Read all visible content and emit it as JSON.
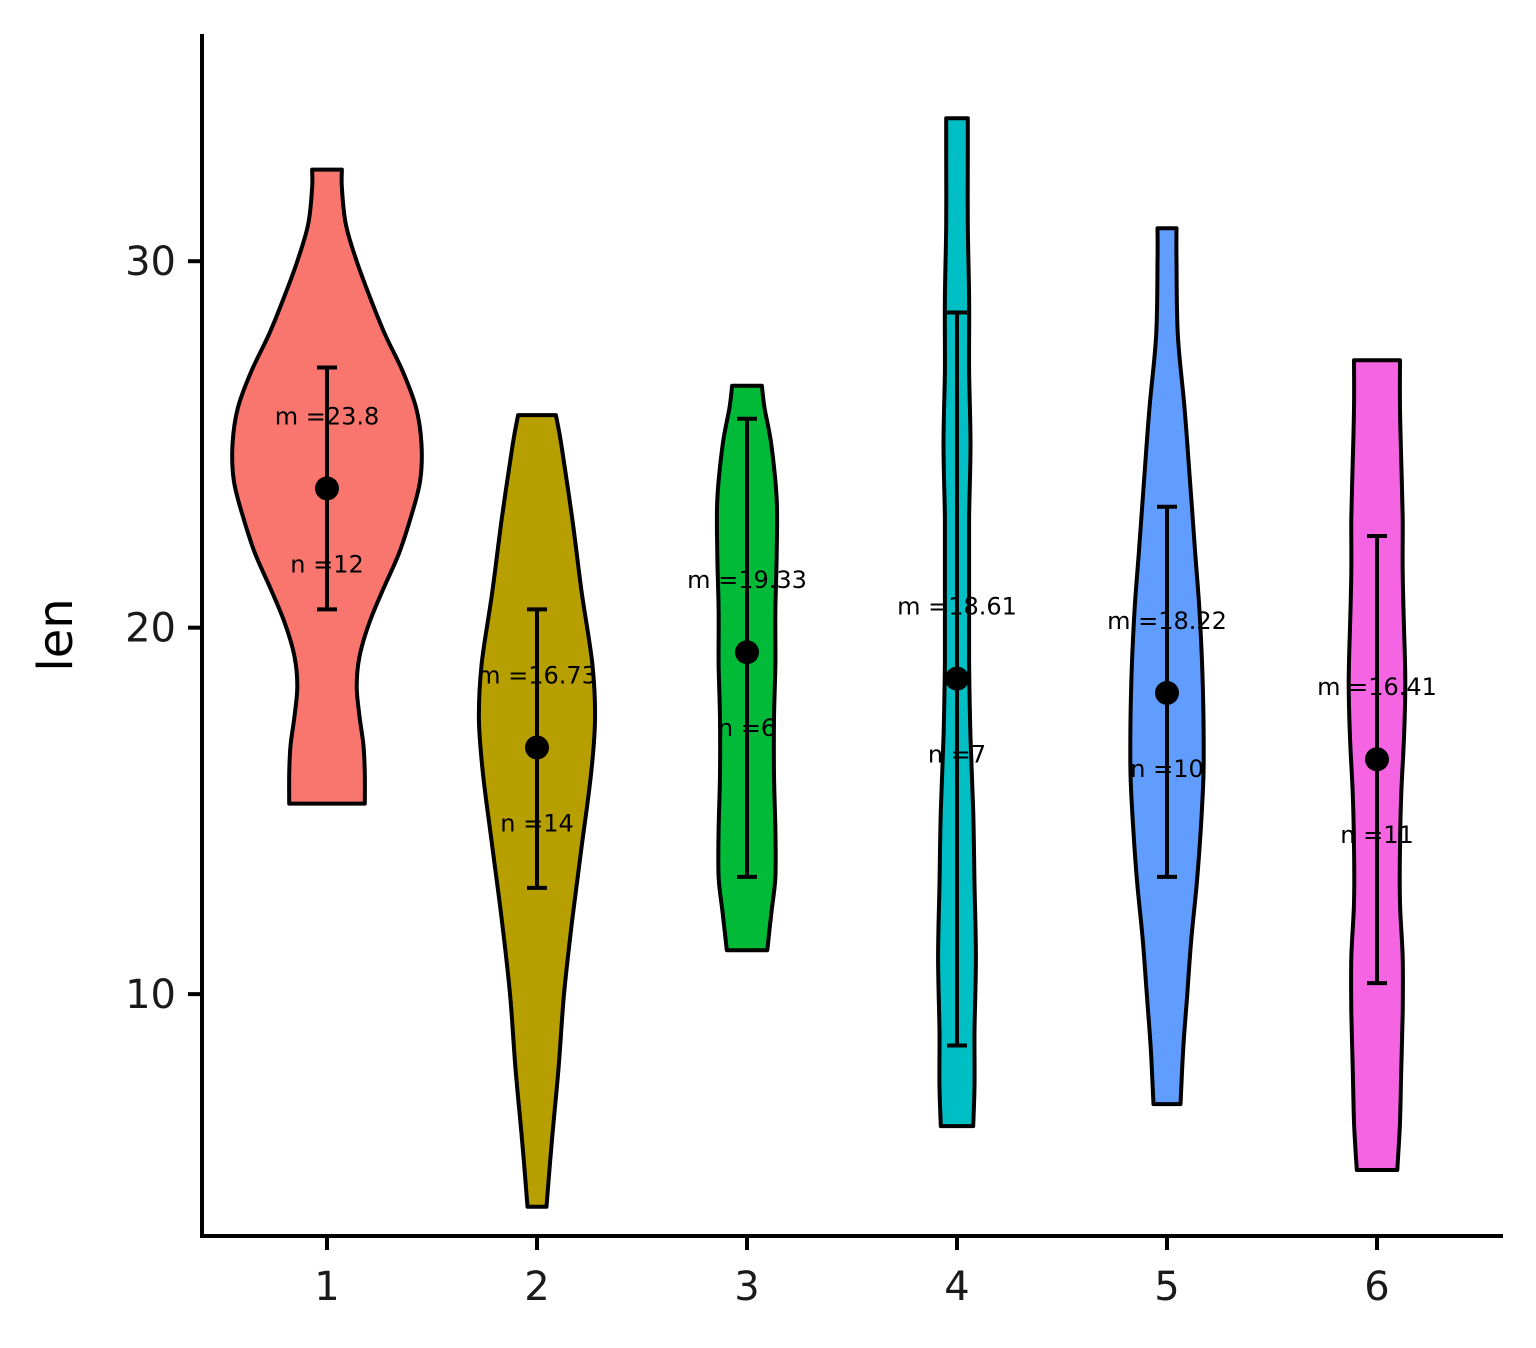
{
  "chart_data": {
    "type": "violin",
    "ylabel": "len",
    "xlabel": "",
    "ylim": [
      3.4,
      36.2
    ],
    "yticks": [
      10,
      20,
      30
    ],
    "categories": [
      "1",
      "2",
      "3",
      "4",
      "5",
      "6"
    ],
    "groups": [
      {
        "name": "1",
        "color": "#F8766D",
        "mean": 23.8,
        "sd_low": 20.5,
        "sd_high": 27.1,
        "mean_label": "m =23.8",
        "n_label": "n =12",
        "min": 15.2,
        "max": 32.5,
        "density": [
          [
            15.2,
            0.28
          ],
          [
            16.0,
            0.28
          ],
          [
            16.8,
            0.27
          ],
          [
            17.6,
            0.24
          ],
          [
            18.4,
            0.22
          ],
          [
            19.2,
            0.24
          ],
          [
            20.1,
            0.31
          ],
          [
            21.0,
            0.41
          ],
          [
            22.0,
            0.53
          ],
          [
            23.0,
            0.62
          ],
          [
            24.0,
            0.69
          ],
          [
            25.0,
            0.7
          ],
          [
            26.0,
            0.66
          ],
          [
            27.0,
            0.56
          ],
          [
            28.0,
            0.43
          ],
          [
            29.0,
            0.32
          ],
          [
            30.0,
            0.22
          ],
          [
            31.0,
            0.14
          ],
          [
            32.0,
            0.11
          ],
          [
            32.5,
            0.11
          ]
        ]
      },
      {
        "name": "2",
        "color": "#B79F00",
        "mean": 16.73,
        "sd_low": 12.9,
        "sd_high": 20.5,
        "mean_label": "m =16.73",
        "n_label": "n =14",
        "min": 4.2,
        "max": 25.8,
        "density": [
          [
            4.2,
            0.07
          ],
          [
            6.0,
            0.11
          ],
          [
            8.0,
            0.16
          ],
          [
            10.0,
            0.2
          ],
          [
            12.0,
            0.26
          ],
          [
            14.0,
            0.33
          ],
          [
            16.0,
            0.4
          ],
          [
            17.5,
            0.43
          ],
          [
            19.0,
            0.41
          ],
          [
            21.0,
            0.33
          ],
          [
            23.0,
            0.26
          ],
          [
            25.0,
            0.18
          ],
          [
            25.8,
            0.14
          ]
        ]
      },
      {
        "name": "3",
        "color": "#00BA38",
        "mean": 19.33,
        "sd_low": 13.2,
        "sd_high": 25.7,
        "mean_label": "m =19.33",
        "n_label": "n =6",
        "min": 11.2,
        "max": 26.6,
        "density": [
          [
            11.2,
            0.15
          ],
          [
            12.2,
            0.18
          ],
          [
            13.2,
            0.21
          ],
          [
            14.5,
            0.21
          ],
          [
            16.0,
            0.2
          ],
          [
            17.5,
            0.2
          ],
          [
            19.0,
            0.21
          ],
          [
            20.5,
            0.21
          ],
          [
            22.0,
            0.22
          ],
          [
            23.5,
            0.22
          ],
          [
            25.0,
            0.18
          ],
          [
            26.0,
            0.13
          ],
          [
            26.6,
            0.11
          ]
        ]
      },
      {
        "name": "4",
        "color": "#00BFC4",
        "mean": 18.61,
        "sd_low": 8.6,
        "sd_high": 28.6,
        "mean_label": "m =18.61",
        "n_label": "n =7",
        "min": 6.4,
        "max": 33.9,
        "density": [
          [
            6.4,
            0.12
          ],
          [
            7.5,
            0.13
          ],
          [
            9.0,
            0.13
          ],
          [
            11.0,
            0.14
          ],
          [
            13.0,
            0.13
          ],
          [
            15.0,
            0.12
          ],
          [
            17.0,
            0.1
          ],
          [
            19.0,
            0.09
          ],
          [
            21.0,
            0.09
          ],
          [
            23.0,
            0.09
          ],
          [
            25.0,
            0.1
          ],
          [
            27.0,
            0.09
          ],
          [
            29.0,
            0.09
          ],
          [
            31.0,
            0.08
          ],
          [
            33.0,
            0.08
          ],
          [
            33.9,
            0.08
          ]
        ]
      },
      {
        "name": "5",
        "color": "#619CFF",
        "mean": 18.22,
        "sd_low": 13.2,
        "sd_high": 23.3,
        "mean_label": "m =18.22",
        "n_label": "n =10",
        "min": 7.0,
        "max": 30.9,
        "density": [
          [
            7.0,
            0.1
          ],
          [
            8.5,
            0.12
          ],
          [
            10.0,
            0.15
          ],
          [
            11.5,
            0.18
          ],
          [
            13.0,
            0.22
          ],
          [
            14.5,
            0.25
          ],
          [
            16.0,
            0.27
          ],
          [
            17.5,
            0.27
          ],
          [
            19.0,
            0.26
          ],
          [
            20.5,
            0.24
          ],
          [
            22.0,
            0.21
          ],
          [
            24.0,
            0.17
          ],
          [
            26.0,
            0.13
          ],
          [
            28.0,
            0.08
          ],
          [
            30.0,
            0.07
          ],
          [
            30.9,
            0.07
          ]
        ]
      },
      {
        "name": "6",
        "color": "#F564E3",
        "mean": 16.41,
        "sd_low": 10.3,
        "sd_high": 22.5,
        "mean_label": "m =16.41",
        "n_label": "n =11",
        "min": 5.2,
        "max": 27.3,
        "density": [
          [
            5.2,
            0.15
          ],
          [
            6.5,
            0.17
          ],
          [
            8.0,
            0.18
          ],
          [
            9.5,
            0.19
          ],
          [
            11.0,
            0.19
          ],
          [
            12.5,
            0.17
          ],
          [
            14.0,
            0.17
          ],
          [
            15.5,
            0.18
          ],
          [
            17.0,
            0.2
          ],
          [
            18.5,
            0.21
          ],
          [
            20.0,
            0.2
          ],
          [
            21.5,
            0.19
          ],
          [
            23.0,
            0.19
          ],
          [
            24.5,
            0.18
          ],
          [
            26.0,
            0.17
          ],
          [
            27.3,
            0.17
          ]
        ]
      }
    ]
  }
}
